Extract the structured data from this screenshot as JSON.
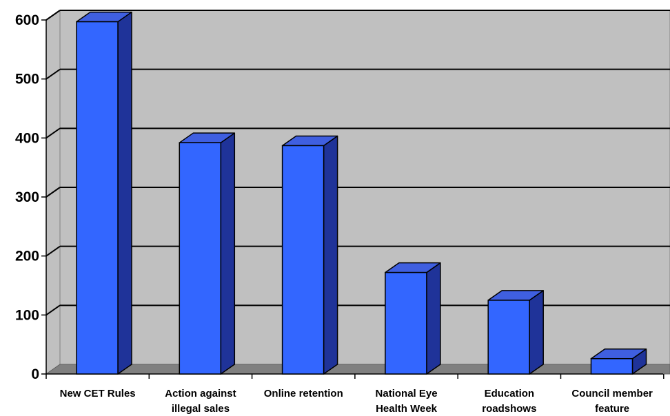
{
  "chart_data": {
    "type": "bar",
    "style": "3d-column",
    "categories": [
      [
        "New CET Rules"
      ],
      [
        "Action against",
        "illegal sales"
      ],
      [
        "Online retention"
      ],
      [
        "National Eye",
        "Health Week"
      ],
      [
        "Education",
        "roadshows"
      ],
      [
        "Council member",
        "feature"
      ]
    ],
    "values": [
      597,
      392,
      387,
      172,
      125,
      26
    ],
    "ylim": [
      0,
      600
    ],
    "yticks": [
      0,
      100,
      200,
      300,
      400,
      500,
      600
    ],
    "grid": true,
    "legend": "none",
    "colors": {
      "bar_front": "#3366ff",
      "bar_top": "#3f5fe0",
      "bar_side": "#1f3399",
      "wall": "#c0c0c0",
      "floor": "#808080",
      "gridline": "#000000"
    }
  }
}
